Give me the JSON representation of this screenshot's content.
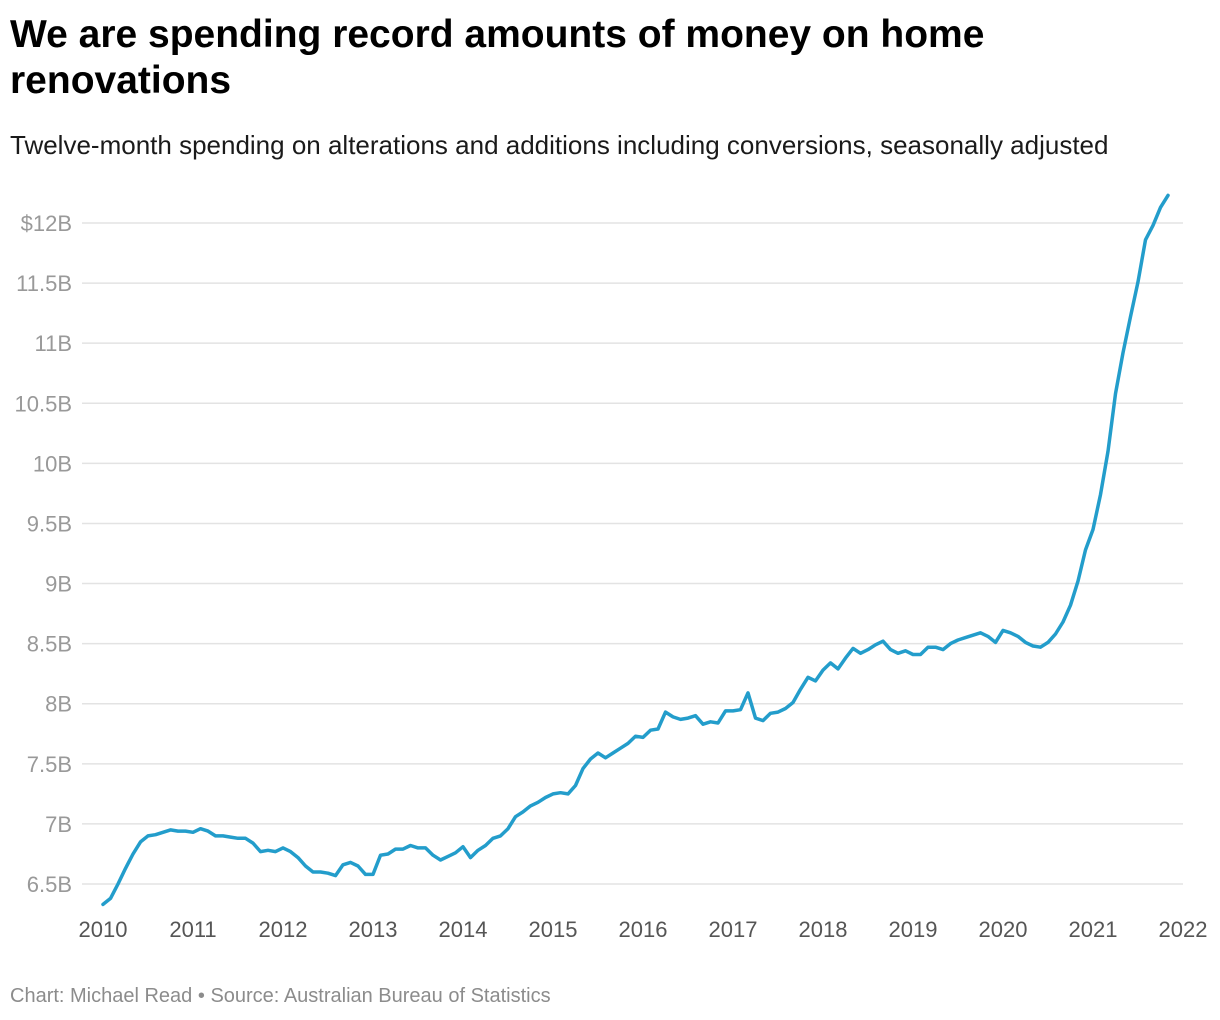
{
  "title": "We are spending record amounts of money on home renovations",
  "subtitle": "Twelve-month spending on alterations and additions including conversions, seasonally adjusted",
  "footer": {
    "credit": "Chart: Michael Read",
    "separator": " • ",
    "source": "Source: Australian Bureau of Statistics"
  },
  "colors": {
    "line": "#239dcb",
    "grid": "#e3e3e3",
    "tick": "#999999"
  },
  "chart_data": {
    "type": "line",
    "title": "We are spending record amounts of money on home renovations",
    "subtitle": "Twelve-month spending on alterations and additions including conversions, seasonally adjusted",
    "xlabel": "",
    "ylabel": "",
    "x_unit": "year",
    "y_unit": "billion AUD",
    "xlim": [
      2010,
      2022
    ],
    "ylim": [
      6.4,
      12.3
    ],
    "grid": true,
    "legend": "none",
    "yticks": [
      {
        "value": 6.5,
        "label": "6.5B"
      },
      {
        "value": 7,
        "label": "7B"
      },
      {
        "value": 7.5,
        "label": "7.5B"
      },
      {
        "value": 8,
        "label": "8B"
      },
      {
        "value": 8.5,
        "label": "8.5B"
      },
      {
        "value": 9,
        "label": "9B"
      },
      {
        "value": 9.5,
        "label": "9.5B"
      },
      {
        "value": 10,
        "label": "10B"
      },
      {
        "value": 10.5,
        "label": "10.5B"
      },
      {
        "value": 11,
        "label": "11B"
      },
      {
        "value": 11.5,
        "label": "11.5B"
      },
      {
        "value": 12,
        "label": "$12B"
      }
    ],
    "xticks": [
      {
        "value": 2010,
        "label": "2010"
      },
      {
        "value": 2011,
        "label": "2011"
      },
      {
        "value": 2012,
        "label": "2012"
      },
      {
        "value": 2013,
        "label": "2013"
      },
      {
        "value": 2014,
        "label": "2014"
      },
      {
        "value": 2015,
        "label": "2015"
      },
      {
        "value": 2016,
        "label": "2016"
      },
      {
        "value": 2017,
        "label": "2017"
      },
      {
        "value": 2018,
        "label": "2018"
      },
      {
        "value": 2019,
        "label": "2019"
      },
      {
        "value": 2020,
        "label": "2020"
      },
      {
        "value": 2021,
        "label": "2021"
      },
      {
        "value": 2022,
        "label": "2022"
      }
    ],
    "series": [
      {
        "points": [
          [
            2010.0,
            6.33
          ],
          [
            2010.083,
            6.38
          ],
          [
            2010.167,
            6.5
          ],
          [
            2010.25,
            6.63
          ],
          [
            2010.333,
            6.75
          ],
          [
            2010.417,
            6.85
          ],
          [
            2010.5,
            6.9
          ],
          [
            2010.583,
            6.91
          ],
          [
            2010.667,
            6.93
          ],
          [
            2010.75,
            6.95
          ],
          [
            2010.833,
            6.94
          ],
          [
            2010.917,
            6.94
          ],
          [
            2011.0,
            6.93
          ],
          [
            2011.083,
            6.96
          ],
          [
            2011.167,
            6.94
          ],
          [
            2011.25,
            6.9
          ],
          [
            2011.333,
            6.9
          ],
          [
            2011.417,
            6.89
          ],
          [
            2011.5,
            6.88
          ],
          [
            2011.583,
            6.88
          ],
          [
            2011.667,
            6.84
          ],
          [
            2011.75,
            6.77
          ],
          [
            2011.833,
            6.78
          ],
          [
            2011.917,
            6.77
          ],
          [
            2012.0,
            6.8
          ],
          [
            2012.083,
            6.77
          ],
          [
            2012.167,
            6.72
          ],
          [
            2012.25,
            6.65
          ],
          [
            2012.333,
            6.6
          ],
          [
            2012.417,
            6.6
          ],
          [
            2012.5,
            6.59
          ],
          [
            2012.583,
            6.57
          ],
          [
            2012.667,
            6.66
          ],
          [
            2012.75,
            6.68
          ],
          [
            2012.833,
            6.65
          ],
          [
            2012.917,
            6.58
          ],
          [
            2013.0,
            6.58
          ],
          [
            2013.083,
            6.74
          ],
          [
            2013.167,
            6.75
          ],
          [
            2013.25,
            6.79
          ],
          [
            2013.333,
            6.79
          ],
          [
            2013.417,
            6.82
          ],
          [
            2013.5,
            6.8
          ],
          [
            2013.583,
            6.8
          ],
          [
            2013.667,
            6.74
          ],
          [
            2013.75,
            6.7
          ],
          [
            2013.833,
            6.73
          ],
          [
            2013.917,
            6.76
          ],
          [
            2014.0,
            6.81
          ],
          [
            2014.083,
            6.72
          ],
          [
            2014.167,
            6.78
          ],
          [
            2014.25,
            6.82
          ],
          [
            2014.333,
            6.88
          ],
          [
            2014.417,
            6.9
          ],
          [
            2014.5,
            6.96
          ],
          [
            2014.583,
            7.06
          ],
          [
            2014.667,
            7.1
          ],
          [
            2014.75,
            7.15
          ],
          [
            2014.833,
            7.18
          ],
          [
            2014.917,
            7.22
          ],
          [
            2015.0,
            7.25
          ],
          [
            2015.083,
            7.26
          ],
          [
            2015.167,
            7.25
          ],
          [
            2015.25,
            7.32
          ],
          [
            2015.333,
            7.46
          ],
          [
            2015.417,
            7.54
          ],
          [
            2015.5,
            7.59
          ],
          [
            2015.583,
            7.55
          ],
          [
            2015.667,
            7.59
          ],
          [
            2015.75,
            7.63
          ],
          [
            2015.833,
            7.67
          ],
          [
            2015.917,
            7.73
          ],
          [
            2016.0,
            7.72
          ],
          [
            2016.083,
            7.78
          ],
          [
            2016.167,
            7.79
          ],
          [
            2016.25,
            7.93
          ],
          [
            2016.333,
            7.89
          ],
          [
            2016.417,
            7.87
          ],
          [
            2016.5,
            7.88
          ],
          [
            2016.583,
            7.9
          ],
          [
            2016.667,
            7.83
          ],
          [
            2016.75,
            7.85
          ],
          [
            2016.833,
            7.84
          ],
          [
            2016.917,
            7.94
          ],
          [
            2017.0,
            7.94
          ],
          [
            2017.083,
            7.95
          ],
          [
            2017.167,
            8.09
          ],
          [
            2017.25,
            7.88
          ],
          [
            2017.333,
            7.86
          ],
          [
            2017.417,
            7.92
          ],
          [
            2017.5,
            7.93
          ],
          [
            2017.583,
            7.96
          ],
          [
            2017.667,
            8.01
          ],
          [
            2017.75,
            8.12
          ],
          [
            2017.833,
            8.22
          ],
          [
            2017.917,
            8.19
          ],
          [
            2018.0,
            8.28
          ],
          [
            2018.083,
            8.34
          ],
          [
            2018.167,
            8.29
          ],
          [
            2018.25,
            8.38
          ],
          [
            2018.333,
            8.46
          ],
          [
            2018.417,
            8.42
          ],
          [
            2018.5,
            8.45
          ],
          [
            2018.583,
            8.49
          ],
          [
            2018.667,
            8.52
          ],
          [
            2018.75,
            8.45
          ],
          [
            2018.833,
            8.42
          ],
          [
            2018.917,
            8.44
          ],
          [
            2019.0,
            8.41
          ],
          [
            2019.083,
            8.41
          ],
          [
            2019.167,
            8.47
          ],
          [
            2019.25,
            8.47
          ],
          [
            2019.333,
            8.45
          ],
          [
            2019.417,
            8.5
          ],
          [
            2019.5,
            8.53
          ],
          [
            2019.583,
            8.55
          ],
          [
            2019.667,
            8.57
          ],
          [
            2019.75,
            8.59
          ],
          [
            2019.833,
            8.56
          ],
          [
            2019.917,
            8.51
          ],
          [
            2020.0,
            8.61
          ],
          [
            2020.083,
            8.59
          ],
          [
            2020.167,
            8.56
          ],
          [
            2020.25,
            8.51
          ],
          [
            2020.333,
            8.48
          ],
          [
            2020.417,
            8.47
          ],
          [
            2020.5,
            8.51
          ],
          [
            2020.583,
            8.58
          ],
          [
            2020.667,
            8.68
          ],
          [
            2020.75,
            8.82
          ],
          [
            2020.833,
            9.02
          ],
          [
            2020.917,
            9.28
          ],
          [
            2021.0,
            9.45
          ],
          [
            2021.083,
            9.74
          ],
          [
            2021.167,
            10.1
          ],
          [
            2021.25,
            10.58
          ],
          [
            2021.333,
            10.92
          ],
          [
            2021.417,
            11.22
          ],
          [
            2021.5,
            11.51
          ],
          [
            2021.583,
            11.86
          ],
          [
            2021.667,
            11.98
          ],
          [
            2021.75,
            12.13
          ],
          [
            2021.833,
            12.23
          ]
        ]
      }
    ]
  }
}
